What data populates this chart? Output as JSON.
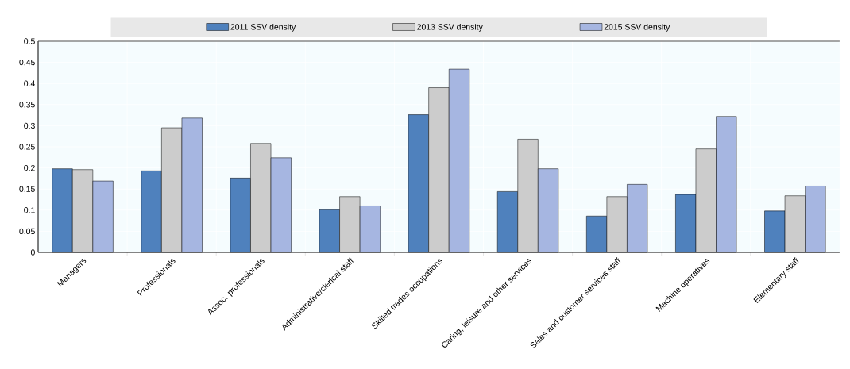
{
  "chart_data": {
    "type": "bar",
    "categories": [
      "Managers",
      "Professionals",
      "Assoc. professionals",
      "Administrative/clerical staff",
      "Skilled trades occupations",
      "Caring, leisure and other services",
      "Sales and customer services staff",
      "Machine operatives",
      "Elementary staff"
    ],
    "series": [
      {
        "name": "2011 SSV density",
        "color": "#4f81bd",
        "values": [
          0.198,
          0.193,
          0.176,
          0.101,
          0.326,
          0.144,
          0.086,
          0.137,
          0.098
        ]
      },
      {
        "name": "2013 SSV density",
        "color": "#cccccc",
        "values": [
          0.196,
          0.295,
          0.258,
          0.132,
          0.39,
          0.268,
          0.132,
          0.245,
          0.134
        ]
      },
      {
        "name": "2015 SSV density",
        "color": "#a6b6e1",
        "values": [
          0.169,
          0.318,
          0.224,
          0.11,
          0.434,
          0.198,
          0.161,
          0.322,
          0.157
        ]
      }
    ],
    "ylim": [
      0,
      0.5
    ],
    "yticks": [
      0,
      0.05,
      0.1,
      0.15,
      0.2,
      0.25,
      0.3,
      0.35,
      0.4,
      0.45,
      0.5
    ],
    "grid": true,
    "legend": "top"
  }
}
